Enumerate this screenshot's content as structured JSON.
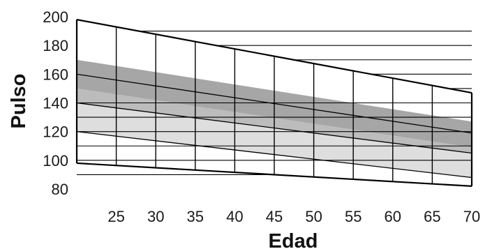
{
  "chart_data": {
    "type": "area",
    "xlabel": "Edad",
    "ylabel": "Pulso",
    "xlim": [
      20,
      70
    ],
    "ylim": [
      80,
      200
    ],
    "x_ticks": [
      "25",
      "30",
      "35",
      "40",
      "45",
      "50",
      "55",
      "60",
      "65",
      "70"
    ],
    "y_ticks": [
      "200",
      "180",
      "160",
      "140",
      "120",
      "100",
      "80"
    ],
    "grid": true,
    "boundary_lines": [
      {
        "x": [
          20,
          70
        ],
        "y": [
          198,
          147
        ]
      },
      {
        "x": [
          20,
          70
        ],
        "y": [
          98,
          82
        ]
      }
    ],
    "zones": [
      {
        "x": [
          20,
          70
        ],
        "upper": [
          170,
          127
        ],
        "lower": [
          150,
          109
        ],
        "color": "#a6a6a6"
      },
      {
        "x": [
          20,
          70
        ],
        "upper": [
          150,
          109
        ],
        "lower": [
          140,
          105
        ],
        "color": "#bcbcbc"
      },
      {
        "x": [
          20,
          70
        ],
        "upper": [
          140,
          105
        ],
        "lower": [
          120,
          88
        ],
        "color": "#dedede"
      }
    ],
    "inner_lines": [
      {
        "x": [
          20,
          70
        ],
        "y": [
          160,
          119
        ]
      },
      {
        "x": [
          20,
          70
        ],
        "y": [
          140,
          105
        ]
      },
      {
        "x": [
          20,
          70
        ],
        "y": [
          120,
          88
        ]
      }
    ],
    "colors": {
      "grid": "#000000",
      "lines": "#000000",
      "text": "#1a1a1a"
    }
  }
}
